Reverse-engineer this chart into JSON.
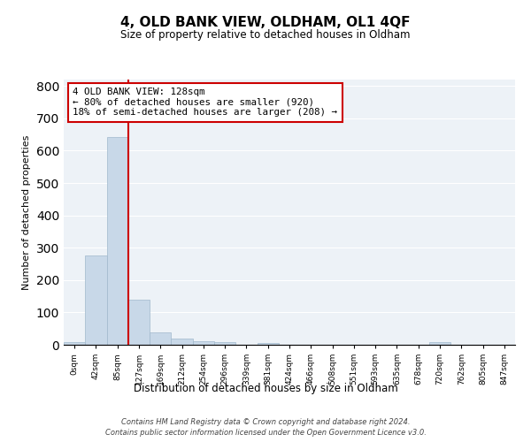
{
  "title": "4, OLD BANK VIEW, OLDHAM, OL1 4QF",
  "subtitle": "Size of property relative to detached houses in Oldham",
  "xlabel": "Distribution of detached houses by size in Oldham",
  "ylabel": "Number of detached properties",
  "bin_labels": [
    "0sqm",
    "42sqm",
    "85sqm",
    "127sqm",
    "169sqm",
    "212sqm",
    "254sqm",
    "296sqm",
    "339sqm",
    "381sqm",
    "424sqm",
    "466sqm",
    "508sqm",
    "551sqm",
    "593sqm",
    "635sqm",
    "678sqm",
    "720sqm",
    "762sqm",
    "805sqm",
    "847sqm"
  ],
  "bar_values": [
    8,
    275,
    641,
    140,
    38,
    20,
    12,
    7,
    0,
    5,
    0,
    0,
    0,
    0,
    0,
    0,
    0,
    7,
    0,
    0,
    0
  ],
  "bar_color": "#c8d8e8",
  "bar_edge_color": "#a0b8cc",
  "ylim": [
    0,
    820
  ],
  "yticks": [
    0,
    100,
    200,
    300,
    400,
    500,
    600,
    700,
    800
  ],
  "property_line_x": 3,
  "property_line_color": "#cc0000",
  "annotation_text": "4 OLD BANK VIEW: 128sqm\n← 80% of detached houses are smaller (920)\n18% of semi-detached houses are larger (208) →",
  "annotation_box_color": "#ffffff",
  "annotation_box_edge": "#cc0000",
  "footer_line1": "Contains HM Land Registry data © Crown copyright and database right 2024.",
  "footer_line2": "Contains public sector information licensed under the Open Government Licence v3.0.",
  "background_color": "#edf2f7"
}
